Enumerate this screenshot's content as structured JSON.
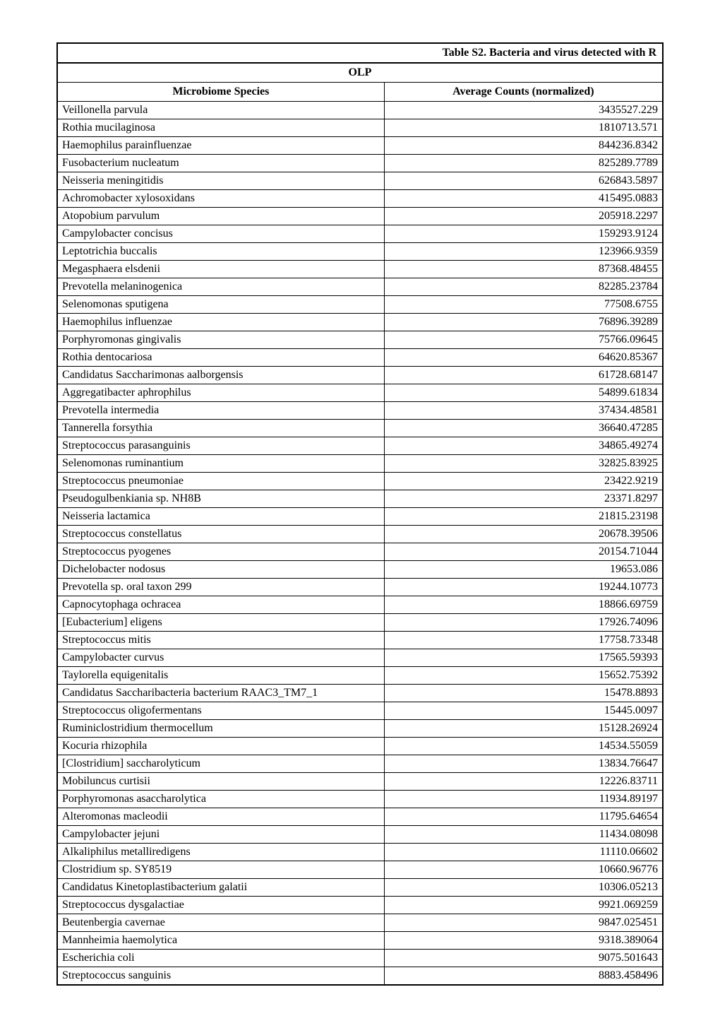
{
  "table": {
    "title": "Table S2. Bacteria and virus  detected with R",
    "group_label": "OLP",
    "columns": [
      "Microbiome Species",
      "Average Counts (normalized)"
    ],
    "rows": [
      [
        "Veillonella parvula",
        "3435527.229"
      ],
      [
        "Rothia mucilaginosa",
        "1810713.571"
      ],
      [
        "Haemophilus parainfluenzae",
        "844236.8342"
      ],
      [
        "Fusobacterium nucleatum",
        "825289.7789"
      ],
      [
        "Neisseria meningitidis",
        "626843.5897"
      ],
      [
        "Achromobacter xylosoxidans",
        "415495.0883"
      ],
      [
        "Atopobium parvulum",
        "205918.2297"
      ],
      [
        "Campylobacter concisus",
        "159293.9124"
      ],
      [
        "Leptotrichia buccalis",
        "123966.9359"
      ],
      [
        "Megasphaera elsdenii",
        "87368.48455"
      ],
      [
        "Prevotella melaninogenica",
        "82285.23784"
      ],
      [
        "Selenomonas sputigena",
        "77508.6755"
      ],
      [
        "Haemophilus influenzae",
        "76896.39289"
      ],
      [
        "Porphyromonas gingivalis",
        "75766.09645"
      ],
      [
        "Rothia dentocariosa",
        "64620.85367"
      ],
      [
        "Candidatus Saccharimonas aalborgensis",
        "61728.68147"
      ],
      [
        "Aggregatibacter aphrophilus",
        "54899.61834"
      ],
      [
        "Prevotella intermedia",
        "37434.48581"
      ],
      [
        "Tannerella forsythia",
        "36640.47285"
      ],
      [
        "Streptococcus parasanguinis",
        "34865.49274"
      ],
      [
        "Selenomonas ruminantium",
        "32825.83925"
      ],
      [
        "Streptococcus pneumoniae",
        "23422.9219"
      ],
      [
        "Pseudogulbenkiania sp. NH8B",
        "23371.8297"
      ],
      [
        "Neisseria lactamica",
        "21815.23198"
      ],
      [
        "Streptococcus constellatus",
        "20678.39506"
      ],
      [
        "Streptococcus pyogenes",
        "20154.71044"
      ],
      [
        "Dichelobacter nodosus",
        "19653.086"
      ],
      [
        "Prevotella sp. oral taxon 299",
        "19244.10773"
      ],
      [
        "Capnocytophaga ochracea",
        "18866.69759"
      ],
      [
        "[Eubacterium] eligens",
        "17926.74096"
      ],
      [
        "Streptococcus mitis",
        "17758.73348"
      ],
      [
        "Campylobacter curvus",
        "17565.59393"
      ],
      [
        "Taylorella equigenitalis",
        "15652.75392"
      ],
      [
        "Candidatus Saccharibacteria bacterium RAAC3_TM7_1",
        "15478.8893"
      ],
      [
        "Streptococcus oligofermentans",
        "15445.0097"
      ],
      [
        "Ruminiclostridium thermocellum",
        "15128.26924"
      ],
      [
        "Kocuria rhizophila",
        "14534.55059"
      ],
      [
        "[Clostridium] saccharolyticum",
        "13834.76647"
      ],
      [
        "Mobiluncus curtisii",
        "12226.83711"
      ],
      [
        "Porphyromonas asaccharolytica",
        "11934.89197"
      ],
      [
        "Alteromonas macleodii",
        "11795.64654"
      ],
      [
        "Campylobacter jejuni",
        "11434.08098"
      ],
      [
        "Alkaliphilus metalliredigens",
        "11110.06602"
      ],
      [
        "Clostridium sp. SY8519",
        "10660.96776"
      ],
      [
        "Candidatus Kinetoplastibacterium galatii",
        "10306.05213"
      ],
      [
        "Streptococcus dysgalactiae",
        "9921.069259"
      ],
      [
        "Beutenbergia cavernae",
        "9847.025451"
      ],
      [
        "Mannheimia haemolytica",
        "9318.389064"
      ],
      [
        "Escherichia coli",
        "9075.501643"
      ],
      [
        "Streptococcus sanguinis",
        "8883.458496"
      ]
    ],
    "styling": {
      "font_family": "Times New Roman",
      "font_size": 16,
      "header_font_weight": "bold",
      "border_color": "#000000",
      "outer_border_width": 2,
      "inner_border_width": 1,
      "background_color": "#ffffff",
      "species_column_align": "left",
      "counts_column_align": "right",
      "header_align": "center",
      "title_align": "right",
      "group_align": "center",
      "species_column_width_pct": 54,
      "counts_column_width_pct": 46
    }
  }
}
